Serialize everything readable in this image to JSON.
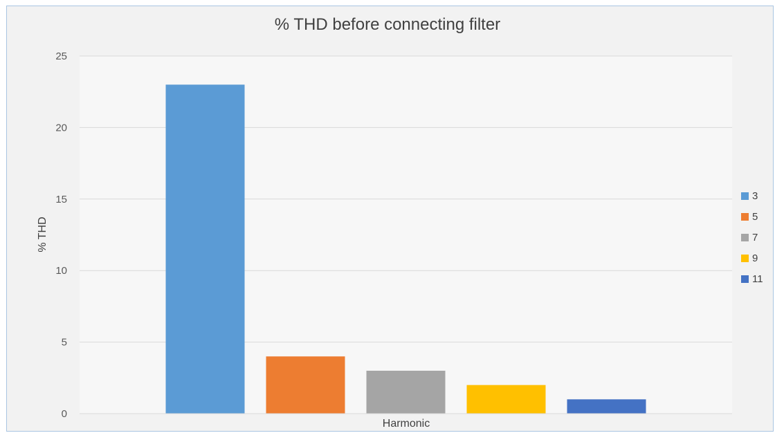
{
  "chart_data": {
    "type": "bar",
    "title": "% THD before connecting filter",
    "xlabel": "Harmonic",
    "ylabel": "% THD",
    "ylim": [
      0,
      25
    ],
    "yticks": [
      0,
      5,
      10,
      15,
      20,
      25
    ],
    "grid": true,
    "legend_position": "right",
    "categories": [
      ""
    ],
    "series": [
      {
        "name": "3",
        "values": [
          23
        ],
        "color": "#5b9bd5"
      },
      {
        "name": "5",
        "values": [
          4
        ],
        "color": "#ed7d31"
      },
      {
        "name": "7",
        "values": [
          3
        ],
        "color": "#a5a5a5"
      },
      {
        "name": "9",
        "values": [
          2
        ],
        "color": "#ffc000"
      },
      {
        "name": "11",
        "values": [
          1
        ],
        "color": "#4472c4"
      }
    ]
  }
}
